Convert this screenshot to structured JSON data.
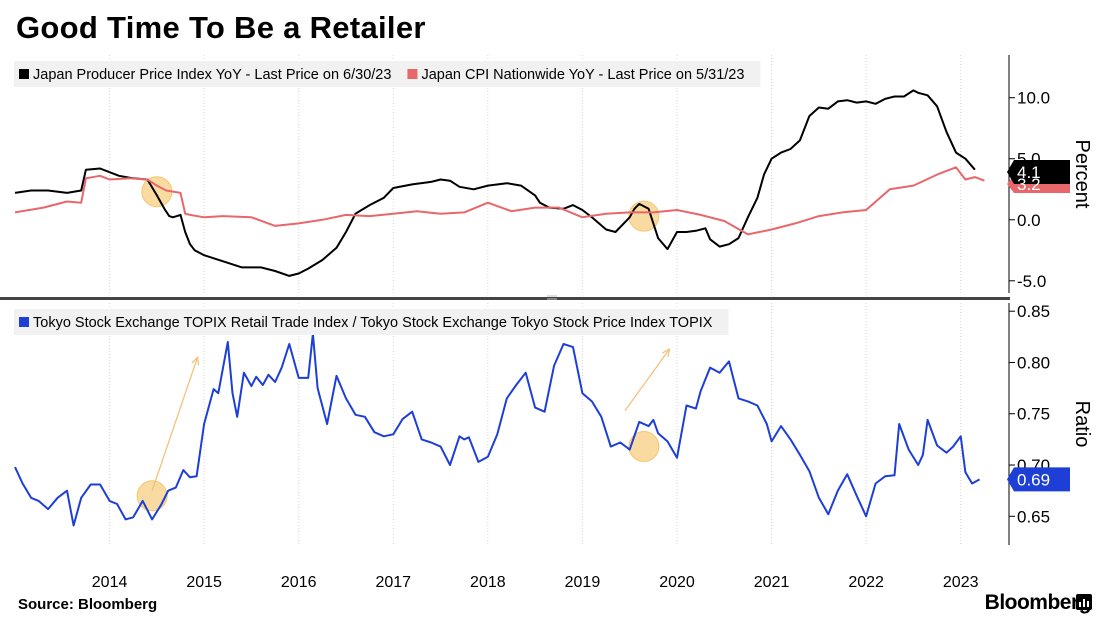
{
  "title": "Good Time To Be a Retailer",
  "source": "Source: Bloomberg",
  "brand": "Bloomberg",
  "brand_icon": "bloomberg-terminal-icon",
  "chart_data": [
    {
      "type": "line",
      "ylabel": "Percent",
      "ylim": [
        -6,
        13.5
      ],
      "yticks": [
        10.0,
        5.0,
        0.0,
        -5.0
      ],
      "ytick_labels": [
        "10.0",
        "5.0",
        "0.0",
        "-5.0"
      ],
      "xlim": [
        2013.0,
        2023.5
      ],
      "legend_position": "top-left",
      "grid": "vertical-at-year-ticks",
      "series": [
        {
          "name": "Japan Producer Price Index YoY - Last Price on 6/30/23",
          "color": "#000000",
          "last_value_label": "4.1",
          "x": [
            2013.0,
            2013.17,
            2013.35,
            2013.55,
            2013.7,
            2013.75,
            2013.9,
            2014.0,
            2014.1,
            2014.25,
            2014.4,
            2014.5,
            2014.58,
            2014.63,
            2014.67,
            2014.75,
            2014.8,
            2014.85,
            2014.9,
            2015.0,
            2015.2,
            2015.4,
            2015.6,
            2015.75,
            2015.9,
            2016.0,
            2016.1,
            2016.25,
            2016.4,
            2016.5,
            2016.6,
            2016.75,
            2016.9,
            2017.0,
            2017.2,
            2017.4,
            2017.5,
            2017.6,
            2017.7,
            2017.85,
            2018.0,
            2018.2,
            2018.35,
            2018.5,
            2018.55,
            2018.65,
            2018.8,
            2018.9,
            2019.0,
            2019.1,
            2019.25,
            2019.35,
            2019.5,
            2019.55,
            2019.6,
            2019.7,
            2019.8,
            2019.9,
            2020.0,
            2020.1,
            2020.2,
            2020.3,
            2020.35,
            2020.45,
            2020.55,
            2020.65,
            2020.75,
            2020.85,
            2020.92,
            2021.0,
            2021.1,
            2021.2,
            2021.3,
            2021.4,
            2021.5,
            2021.6,
            2021.7,
            2021.8,
            2021.9,
            2022.0,
            2022.1,
            2022.2,
            2022.3,
            2022.4,
            2022.5,
            2022.55,
            2022.65,
            2022.75,
            2022.85,
            2022.95,
            2023.05,
            2023.15
          ],
          "y": [
            2.2,
            2.4,
            2.4,
            2.2,
            2.4,
            4.1,
            4.2,
            3.9,
            3.6,
            3.4,
            3.3,
            2.0,
            0.9,
            0.3,
            0.2,
            0.4,
            -1.0,
            -2.0,
            -2.5,
            -2.9,
            -3.4,
            -3.9,
            -3.9,
            -4.2,
            -4.6,
            -4.4,
            -4.0,
            -3.3,
            -2.3,
            -1.0,
            0.5,
            1.2,
            1.8,
            2.6,
            2.9,
            3.1,
            3.3,
            3.2,
            2.7,
            2.5,
            2.8,
            3.0,
            2.8,
            2.0,
            1.4,
            1.0,
            0.9,
            1.2,
            0.8,
            0.2,
            -0.8,
            -1.0,
            0.2,
            0.9,
            1.3,
            0.9,
            -1.5,
            -2.4,
            -1.0,
            -1.0,
            -0.9,
            -0.7,
            -1.6,
            -2.2,
            -2.0,
            -1.5,
            0.2,
            1.8,
            3.7,
            5.0,
            5.5,
            5.8,
            6.5,
            8.5,
            9.2,
            9.1,
            9.7,
            9.8,
            9.6,
            9.7,
            9.5,
            9.9,
            10.1,
            10.1,
            10.6,
            10.4,
            10.2,
            9.3,
            7.2,
            5.5,
            5.0,
            4.1
          ]
        },
        {
          "name": "Japan CPI Nationwide YoY - Last Price on 5/31/23",
          "color": "#e8676b",
          "last_value_label": "3.2",
          "x": [
            2013.0,
            2013.3,
            2013.55,
            2013.7,
            2013.75,
            2013.9,
            2014.0,
            2014.2,
            2014.4,
            2014.5,
            2014.6,
            2014.75,
            2014.8,
            2014.85,
            2015.0,
            2015.2,
            2015.5,
            2015.75,
            2016.0,
            2016.25,
            2016.5,
            2016.75,
            2017.0,
            2017.25,
            2017.5,
            2017.75,
            2018.0,
            2018.25,
            2018.5,
            2018.75,
            2019.0,
            2019.25,
            2019.5,
            2019.75,
            2020.0,
            2020.25,
            2020.5,
            2020.75,
            2021.0,
            2021.25,
            2021.5,
            2021.75,
            2022.0,
            2022.25,
            2022.5,
            2022.75,
            2022.95,
            2023.05,
            2023.15,
            2023.25
          ],
          "y": [
            0.6,
            1.0,
            1.5,
            1.4,
            3.4,
            3.6,
            3.3,
            3.4,
            3.3,
            2.8,
            2.4,
            2.2,
            0.5,
            0.4,
            0.2,
            0.3,
            0.2,
            -0.5,
            -0.3,
            0.0,
            0.4,
            0.3,
            0.5,
            0.7,
            0.5,
            0.6,
            1.4,
            0.7,
            1.0,
            1.0,
            0.2,
            0.5,
            0.6,
            0.6,
            0.8,
            0.4,
            -0.1,
            -1.2,
            -0.8,
            -0.3,
            0.3,
            0.6,
            0.8,
            2.5,
            2.8,
            3.7,
            4.3,
            3.3,
            3.5,
            3.2
          ]
        }
      ]
    },
    {
      "type": "line",
      "ylabel": "Ratio",
      "ylim": [
        0.622,
        0.858
      ],
      "yticks": [
        0.85,
        0.8,
        0.75,
        0.7,
        0.65
      ],
      "ytick_labels": [
        "0.85",
        "0.80",
        "0.75",
        "0.70",
        "0.65"
      ],
      "xlim": [
        2013.0,
        2023.5
      ],
      "x_tick_labels": [
        "2014",
        "2015",
        "2016",
        "2017",
        "2018",
        "2019",
        "2020",
        "2021",
        "2022",
        "2023"
      ],
      "legend_position": "top-left",
      "grid": "vertical-at-year-ticks",
      "series": [
        {
          "name": "Tokyo Stock Exchange TOPIX Retail Trade Index / Tokyo Stock Exchange Tokyo Stock Price Index TOPIX",
          "color": "#1d3fd6",
          "last_value_label": "0.69",
          "x": [
            2013.0,
            2013.08,
            2013.17,
            2013.25,
            2013.35,
            2013.45,
            2013.55,
            2013.62,
            2013.7,
            2013.8,
            2013.9,
            2014.0,
            2014.08,
            2014.17,
            2014.25,
            2014.35,
            2014.45,
            2014.55,
            2014.62,
            2014.7,
            2014.78,
            2014.85,
            2014.92,
            2015.0,
            2015.1,
            2015.15,
            2015.25,
            2015.3,
            2015.35,
            2015.42,
            2015.5,
            2015.55,
            2015.62,
            2015.68,
            2015.75,
            2015.82,
            2015.9,
            2016.0,
            2016.1,
            2016.15,
            2016.2,
            2016.3,
            2016.4,
            2016.5,
            2016.6,
            2016.7,
            2016.8,
            2016.9,
            2017.0,
            2017.1,
            2017.2,
            2017.3,
            2017.4,
            2017.5,
            2017.6,
            2017.7,
            2017.75,
            2017.8,
            2017.9,
            2018.0,
            2018.1,
            2018.2,
            2018.3,
            2018.4,
            2018.5,
            2018.6,
            2018.7,
            2018.8,
            2018.9,
            2019.0,
            2019.1,
            2019.2,
            2019.3,
            2019.4,
            2019.5,
            2019.6,
            2019.7,
            2019.75,
            2019.8,
            2019.9,
            2020.0,
            2020.1,
            2020.2,
            2020.25,
            2020.35,
            2020.45,
            2020.55,
            2020.65,
            2020.75,
            2020.85,
            2020.95,
            2021.0,
            2021.1,
            2021.2,
            2021.3,
            2021.4,
            2021.5,
            2021.6,
            2021.7,
            2021.8,
            2021.9,
            2022.0,
            2022.1,
            2022.2,
            2022.3,
            2022.35,
            2022.45,
            2022.55,
            2022.6,
            2022.65,
            2022.75,
            2022.85,
            2022.92,
            2023.0,
            2023.05,
            2023.12,
            2023.2
          ],
          "y": [
            0.698,
            0.682,
            0.668,
            0.665,
            0.657,
            0.668,
            0.675,
            0.641,
            0.668,
            0.681,
            0.681,
            0.665,
            0.662,
            0.647,
            0.649,
            0.665,
            0.647,
            0.662,
            0.675,
            0.678,
            0.695,
            0.688,
            0.689,
            0.74,
            0.774,
            0.77,
            0.82,
            0.77,
            0.747,
            0.79,
            0.777,
            0.786,
            0.778,
            0.788,
            0.781,
            0.795,
            0.818,
            0.785,
            0.785,
            0.828,
            0.775,
            0.74,
            0.787,
            0.765,
            0.749,
            0.747,
            0.732,
            0.728,
            0.73,
            0.745,
            0.752,
            0.725,
            0.722,
            0.718,
            0.7,
            0.728,
            0.725,
            0.727,
            0.703,
            0.708,
            0.73,
            0.765,
            0.778,
            0.79,
            0.756,
            0.752,
            0.797,
            0.818,
            0.815,
            0.77,
            0.762,
            0.747,
            0.718,
            0.722,
            0.715,
            0.742,
            0.738,
            0.744,
            0.731,
            0.723,
            0.707,
            0.758,
            0.755,
            0.772,
            0.795,
            0.79,
            0.801,
            0.765,
            0.762,
            0.758,
            0.74,
            0.723,
            0.738,
            0.725,
            0.71,
            0.694,
            0.668,
            0.652,
            0.675,
            0.691,
            0.67,
            0.65,
            0.682,
            0.689,
            0.69,
            0.74,
            0.715,
            0.7,
            0.71,
            0.744,
            0.719,
            0.712,
            0.718,
            0.728,
            0.693,
            0.682,
            0.686
          ]
        }
      ]
    }
  ],
  "annotations": {
    "highlight_circles": [
      {
        "panel": 0,
        "x": 2014.5,
        "y": 2.3
      },
      {
        "panel": 0,
        "x": 2019.65,
        "y": 0.3
      },
      {
        "panel": 1,
        "x": 2014.45,
        "y": 0.67
      },
      {
        "panel": 1,
        "x": 2019.65,
        "y": 0.718
      }
    ],
    "trend_arrows": [
      {
        "panel": 1,
        "from": [
          2014.45,
          0.675
        ],
        "to": [
          2014.93,
          0.805
        ]
      },
      {
        "panel": 1,
        "from": [
          2019.45,
          0.753
        ],
        "to": [
          2019.92,
          0.813
        ]
      }
    ],
    "circle_color": "#f6c66f",
    "arrow_color": "#f2c27a"
  }
}
